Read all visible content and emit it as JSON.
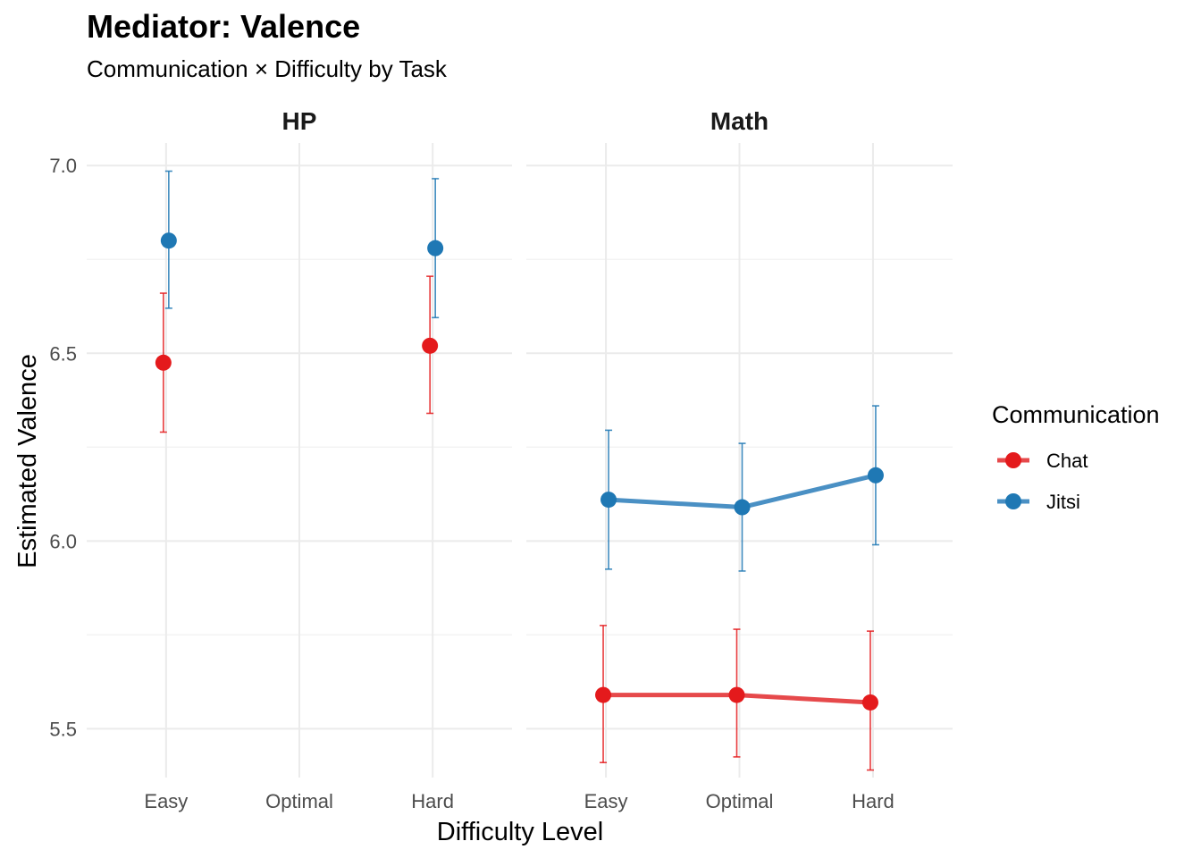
{
  "chart_data": {
    "type": "line",
    "title": "Mediator: Valence",
    "subtitle": "Communication × Difficulty by Task",
    "xlabel": "Difficulty Level",
    "ylabel": "Estimated Valence",
    "categories": [
      "Easy",
      "Optimal",
      "Hard"
    ],
    "ylim": [
      5.37,
      7.06
    ],
    "y_ticks": [
      "5.5",
      "6.0",
      "6.5",
      "7.0"
    ],
    "grid": true,
    "legend": {
      "title": "Communication",
      "position": "right"
    },
    "facets": [
      {
        "label": "HP",
        "series": [
          {
            "name": "Chat",
            "points": [
              {
                "x": "Easy",
                "y": 6.475,
                "lo": 6.29,
                "hi": 6.66
              },
              {
                "x": "Hard",
                "y": 6.52,
                "lo": 6.34,
                "hi": 6.705
              }
            ]
          },
          {
            "name": "Jitsi",
            "points": [
              {
                "x": "Easy",
                "y": 6.8,
                "lo": 6.62,
                "hi": 6.985
              },
              {
                "x": "Hard",
                "y": 6.78,
                "lo": 6.595,
                "hi": 6.965
              }
            ]
          }
        ]
      },
      {
        "label": "Math",
        "series": [
          {
            "name": "Chat",
            "points": [
              {
                "x": "Easy",
                "y": 5.59,
                "lo": 5.41,
                "hi": 5.775
              },
              {
                "x": "Optimal",
                "y": 5.59,
                "lo": 5.425,
                "hi": 5.765
              },
              {
                "x": "Hard",
                "y": 5.57,
                "lo": 5.39,
                "hi": 5.76
              }
            ]
          },
          {
            "name": "Jitsi",
            "points": [
              {
                "x": "Easy",
                "y": 6.11,
                "lo": 5.925,
                "hi": 6.295
              },
              {
                "x": "Optimal",
                "y": 6.09,
                "lo": 5.92,
                "hi": 6.26
              },
              {
                "x": "Hard",
                "y": 6.175,
                "lo": 5.99,
                "hi": 6.36
              }
            ]
          }
        ]
      }
    ]
  },
  "colors": {
    "Chat": "#E41A1C",
    "Jitsi": "#1F78B4",
    "Chat_line": "#E6494B",
    "Jitsi_line": "#4A90C4"
  }
}
